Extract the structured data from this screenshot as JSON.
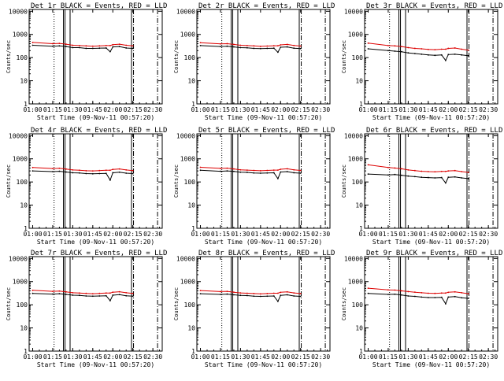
{
  "figure": {
    "xlabel": "Start Time (09-Nov-11 00:57:20)",
    "ylabel": "Counts/sec",
    "x_tick_labels": [
      "01:00",
      "01:15",
      "01:30",
      "01:45",
      "02:00",
      "02:15",
      "02:30"
    ],
    "y_tick_labels": [
      "1",
      "10",
      "100",
      "1000",
      "10000"
    ],
    "colors": {
      "events": "#000000",
      "lld": "#dd0000",
      "background": "#ffffff"
    }
  },
  "chart_data": [
    {
      "type": "line",
      "title": "Det 1r BLACK = Events, RED = LLD",
      "xlabel": "Start Time (09-Nov-11 00:57:20)",
      "ylabel": "Counts/sec",
      "yscale": "log",
      "ylim": [
        1,
        12000
      ],
      "xlim": [
        "00:57:20",
        "02:37:00"
      ],
      "x": [
        "01:00",
        "01:15",
        "01:20",
        "01:25",
        "01:30",
        "01:35",
        "01:40",
        "01:45",
        "01:50",
        "01:55",
        "01:58",
        "02:00",
        "02:05",
        "02:10",
        "02:15"
      ],
      "series": [
        {
          "name": "Events",
          "color": "#000000",
          "values": [
            340,
            310,
            320,
            300,
            270,
            270,
            250,
            250,
            255,
            260,
            180,
            290,
            300,
            260,
            250
          ]
        },
        {
          "name": "LLD",
          "color": "#dd0000",
          "values": [
            450,
            400,
            410,
            380,
            340,
            330,
            320,
            310,
            320,
            330,
            330,
            360,
            380,
            340,
            320
          ]
        }
      ]
    },
    {
      "type": "line",
      "title": "Det 2r BLACK = Events, RED = LLD",
      "xlabel": "Start Time (09-Nov-11 00:57:20)",
      "ylabel": "Counts/sec",
      "yscale": "log",
      "ylim": [
        1,
        12000
      ],
      "xlim": [
        "00:57:20",
        "02:37:00"
      ],
      "x": [
        "01:00",
        "01:15",
        "01:20",
        "01:25",
        "01:30",
        "01:35",
        "01:40",
        "01:45",
        "01:50",
        "01:55",
        "01:58",
        "02:00",
        "02:05",
        "02:10",
        "02:15"
      ],
      "series": [
        {
          "name": "Events",
          "color": "#000000",
          "values": [
            330,
            300,
            310,
            290,
            270,
            265,
            250,
            245,
            250,
            255,
            170,
            280,
            290,
            255,
            245
          ]
        },
        {
          "name": "LLD",
          "color": "#dd0000",
          "values": [
            440,
            390,
            400,
            370,
            340,
            330,
            320,
            305,
            315,
            325,
            325,
            355,
            370,
            335,
            315
          ]
        }
      ]
    },
    {
      "type": "line",
      "title": "Det 3r BLACK = Events, RED = LLD",
      "xlabel": "Start Time (09-Nov-11 00:57:20)",
      "ylabel": "Counts/sec",
      "yscale": "log",
      "ylim": [
        1,
        12000
      ],
      "xlim": [
        "00:57:20",
        "02:37:00"
      ],
      "x": [
        "01:00",
        "01:15",
        "01:20",
        "01:25",
        "01:30",
        "01:35",
        "01:40",
        "01:45",
        "01:50",
        "01:55",
        "01:58",
        "02:00",
        "02:05",
        "02:10",
        "02:15"
      ],
      "series": [
        {
          "name": "Events",
          "color": "#000000",
          "values": [
            240,
            200,
            190,
            180,
            160,
            150,
            140,
            130,
            125,
            130,
            75,
            135,
            140,
            130,
            120
          ]
        },
        {
          "name": "LLD",
          "color": "#dd0000",
          "values": [
            420,
            330,
            320,
            300,
            270,
            250,
            240,
            225,
            220,
            230,
            230,
            250,
            260,
            230,
            210
          ]
        }
      ]
    },
    {
      "type": "line",
      "title": "Det 4r BLACK = Events, RED = LLD",
      "xlabel": "Start Time (09-Nov-11 00:57:20)",
      "ylabel": "Counts/sec",
      "yscale": "log",
      "ylim": [
        1,
        12000
      ],
      "xlim": [
        "00:57:20",
        "02:37:00"
      ],
      "x": [
        "01:00",
        "01:15",
        "01:20",
        "01:25",
        "01:30",
        "01:35",
        "01:40",
        "01:45",
        "01:50",
        "01:55",
        "01:58",
        "02:00",
        "02:05",
        "02:10",
        "02:15"
      ],
      "series": [
        {
          "name": "Events",
          "color": "#000000",
          "values": [
            300,
            280,
            290,
            270,
            250,
            245,
            230,
            225,
            230,
            235,
            120,
            250,
            265,
            240,
            230
          ]
        },
        {
          "name": "LLD",
          "color": "#dd0000",
          "values": [
            420,
            380,
            390,
            360,
            330,
            320,
            305,
            300,
            310,
            320,
            320,
            350,
            365,
            330,
            310
          ]
        }
      ]
    },
    {
      "type": "line",
      "title": "Det 5r BLACK = Events, RED = LLD",
      "xlabel": "Start Time (09-Nov-11 00:57:20)",
      "ylabel": "Counts/sec",
      "yscale": "log",
      "ylim": [
        1,
        12000
      ],
      "xlim": [
        "00:57:20",
        "02:37:00"
      ],
      "x": [
        "01:00",
        "01:15",
        "01:20",
        "01:25",
        "01:30",
        "01:35",
        "01:40",
        "01:45",
        "01:50",
        "01:55",
        "01:58",
        "02:00",
        "02:05",
        "02:10",
        "02:15"
      ],
      "series": [
        {
          "name": "Events",
          "color": "#000000",
          "values": [
            320,
            290,
            300,
            285,
            265,
            260,
            245,
            240,
            245,
            250,
            140,
            270,
            280,
            250,
            240
          ]
        },
        {
          "name": "LLD",
          "color": "#dd0000",
          "values": [
            430,
            385,
            395,
            365,
            335,
            325,
            315,
            305,
            315,
            325,
            325,
            355,
            370,
            335,
            315
          ]
        }
      ]
    },
    {
      "type": "line",
      "title": "Det 6r BLACK = Events, RED = LLD",
      "xlabel": "Start Time (09-Nov-11 00:57:20)",
      "ylabel": "Counts/sec",
      "yscale": "log",
      "ylim": [
        1,
        12000
      ],
      "xlim": [
        "00:57:20",
        "02:37:00"
      ],
      "x": [
        "01:00",
        "01:15",
        "01:20",
        "01:25",
        "01:30",
        "01:35",
        "01:40",
        "01:45",
        "01:50",
        "01:55",
        "01:58",
        "02:00",
        "02:05",
        "02:10",
        "02:15"
      ],
      "series": [
        {
          "name": "Events",
          "color": "#000000",
          "values": [
            220,
            200,
            210,
            195,
            180,
            170,
            160,
            155,
            150,
            155,
            90,
            160,
            165,
            150,
            140
          ]
        },
        {
          "name": "LLD",
          "color": "#dd0000",
          "values": [
            550,
            420,
            400,
            370,
            330,
            310,
            290,
            280,
            275,
            285,
            285,
            300,
            310,
            280,
            260
          ]
        }
      ]
    },
    {
      "type": "line",
      "title": "Det 7r BLACK = Events, RED = LLD",
      "xlabel": "Start Time (09-Nov-11 00:57:20)",
      "ylabel": "Counts/sec",
      "yscale": "log",
      "ylim": [
        1,
        12000
      ],
      "xlim": [
        "00:57:20",
        "02:37:00"
      ],
      "x": [
        "01:00",
        "01:15",
        "01:20",
        "01:25",
        "01:30",
        "01:35",
        "01:40",
        "01:45",
        "01:50",
        "01:55",
        "01:58",
        "02:00",
        "02:05",
        "02:10",
        "02:15"
      ],
      "series": [
        {
          "name": "Events",
          "color": "#000000",
          "values": [
            310,
            290,
            300,
            280,
            260,
            255,
            240,
            235,
            240,
            245,
            150,
            260,
            275,
            245,
            235
          ]
        },
        {
          "name": "LLD",
          "color": "#dd0000",
          "values": [
            420,
            380,
            390,
            360,
            330,
            320,
            310,
            300,
            310,
            320,
            320,
            350,
            365,
            330,
            310
          ]
        }
      ]
    },
    {
      "type": "line",
      "title": "Det 8r BLACK = Events, RED = LLD",
      "xlabel": "Start Time (09-Nov-11 00:57:20)",
      "ylabel": "Counts/sec",
      "yscale": "log",
      "ylim": [
        1,
        12000
      ],
      "xlim": [
        "00:57:20",
        "02:37:00"
      ],
      "x": [
        "01:00",
        "01:15",
        "01:20",
        "01:25",
        "01:30",
        "01:35",
        "01:40",
        "01:45",
        "01:50",
        "01:55",
        "01:58",
        "02:00",
        "02:05",
        "02:10",
        "02:15"
      ],
      "series": [
        {
          "name": "Events",
          "color": "#000000",
          "values": [
            300,
            280,
            290,
            270,
            255,
            250,
            235,
            230,
            235,
            240,
            140,
            255,
            270,
            240,
            230
          ]
        },
        {
          "name": "LLD",
          "color": "#dd0000",
          "values": [
            410,
            370,
            380,
            350,
            325,
            315,
            305,
            295,
            305,
            315,
            315,
            345,
            360,
            325,
            305
          ]
        }
      ]
    },
    {
      "type": "line",
      "title": "Det 9r BLACK = Events, RED = LLD",
      "xlabel": "Start Time (09-Nov-11 00:57:20)",
      "ylabel": "Counts/sec",
      "yscale": "log",
      "ylim": [
        1,
        12000
      ],
      "xlim": [
        "00:57:20",
        "02:37:00"
      ],
      "x": [
        "01:00",
        "01:15",
        "01:20",
        "01:25",
        "01:30",
        "01:35",
        "01:40",
        "01:45",
        "01:50",
        "01:55",
        "01:58",
        "02:00",
        "02:05",
        "02:10",
        "02:15"
      ],
      "series": [
        {
          "name": "Events",
          "color": "#000000",
          "values": [
            310,
            280,
            285,
            265,
            240,
            230,
            215,
            205,
            205,
            210,
            110,
            215,
            225,
            200,
            190
          ]
        },
        {
          "name": "LLD",
          "color": "#dd0000",
          "values": [
            520,
            440,
            430,
            400,
            370,
            350,
            330,
            315,
            310,
            320,
            320,
            345,
            360,
            330,
            300
          ]
        }
      ]
    }
  ]
}
